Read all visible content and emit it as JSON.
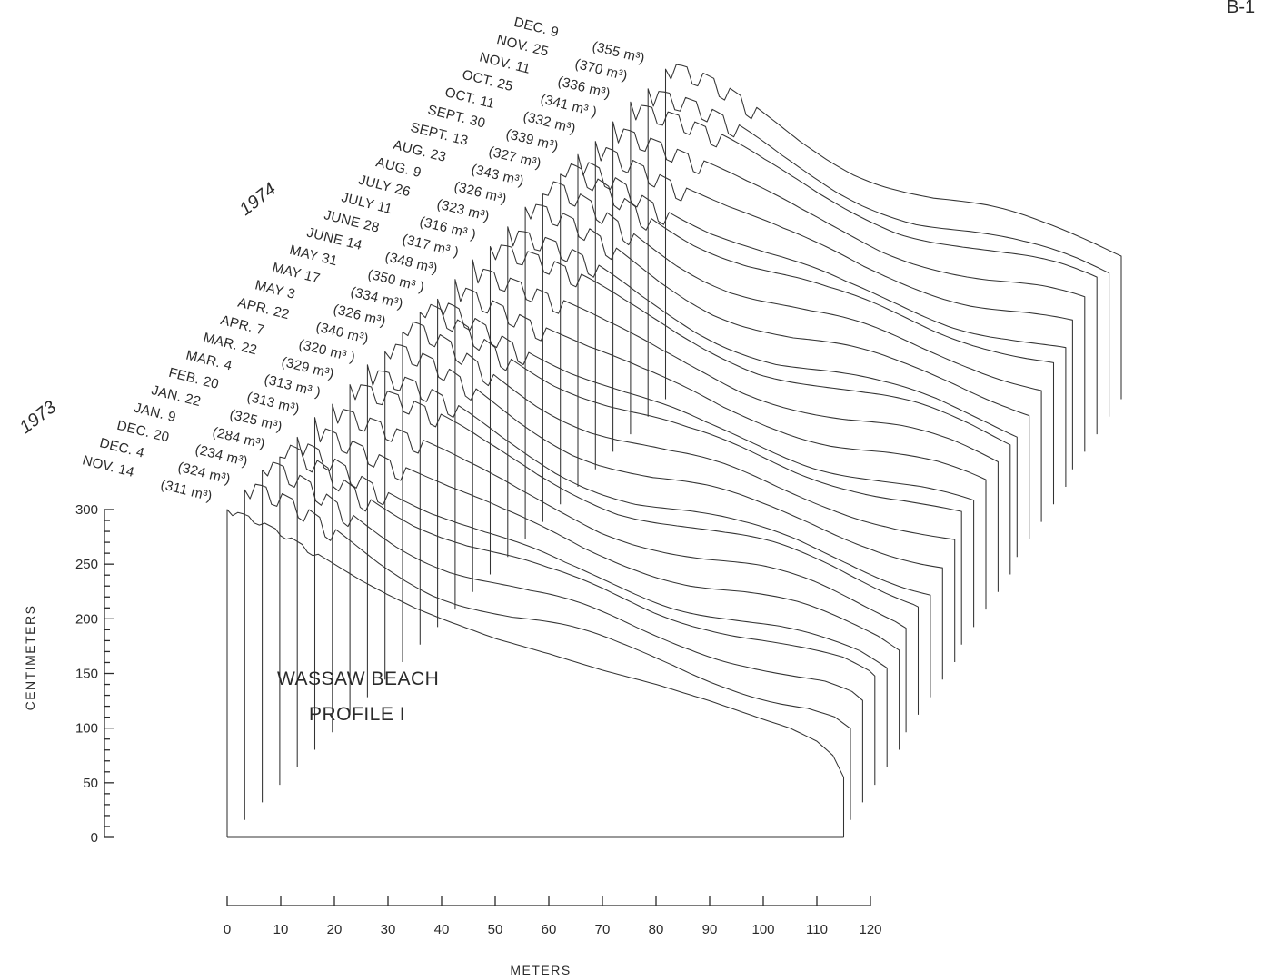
{
  "page_mark": "B-1",
  "chart_data": {
    "type": "line",
    "subtype": "stacked-profile-series",
    "title": "WASSAW BEACH",
    "subtitle": "PROFILE I",
    "xlabel": "METERS",
    "ylabel": "CENTIMETERS",
    "xlim": [
      0,
      120
    ],
    "ylim": [
      0,
      300
    ],
    "x_ticks": [
      "0",
      "10",
      "20",
      "30",
      "40",
      "50",
      "60",
      "70",
      "80",
      "90",
      "100",
      "110",
      "120"
    ],
    "y_ticks": [
      "0",
      "50",
      "100",
      "150",
      "200",
      "250",
      "300"
    ],
    "x_tick_values": [
      0,
      10,
      20,
      30,
      40,
      50,
      60,
      70,
      80,
      90,
      100,
      110,
      120
    ],
    "y_tick_values": [
      0,
      50,
      100,
      150,
      200,
      250,
      300
    ],
    "year_labels": [
      "1973",
      "1974"
    ],
    "grid": false,
    "legend": "none",
    "profile_length_m": 115,
    "series": [
      {
        "date": "NOV. 14",
        "volume": "(311 m³)"
      },
      {
        "date": "DEC. 4",
        "volume": "(324 m³)"
      },
      {
        "date": "DEC. 20",
        "volume": "(234 m³)"
      },
      {
        "date": "JAN. 9",
        "volume": "(284 m³)"
      },
      {
        "date": "JAN. 22",
        "volume": "(325 m³)"
      },
      {
        "date": "FEB. 20",
        "volume": "(313 m³)"
      },
      {
        "date": "MAR. 4",
        "volume": "(313 m³ )"
      },
      {
        "date": "MAR. 22",
        "volume": "(329 m³)"
      },
      {
        "date": "APR. 7",
        "volume": "(320 m³ )"
      },
      {
        "date": "APR. 22",
        "volume": "(340 m³)"
      },
      {
        "date": "MAY 3",
        "volume": "(326 m³)"
      },
      {
        "date": "MAY 17",
        "volume": "(334 m³)"
      },
      {
        "date": "MAY 31",
        "volume": "(350 m³ )"
      },
      {
        "date": "JUNE 14",
        "volume": "(348 m³)"
      },
      {
        "date": "JUNE 28",
        "volume": "(317 m³ )"
      },
      {
        "date": "JULY 11",
        "volume": "(316 m³ )"
      },
      {
        "date": "JULY 26",
        "volume": "(323 m³)"
      },
      {
        "date": "AUG. 9",
        "volume": "(326 m³)"
      },
      {
        "date": "AUG. 23",
        "volume": "(343 m³)"
      },
      {
        "date": "SEPT. 13",
        "volume": "(327 m³)"
      },
      {
        "date": "SEPT. 30",
        "volume": "(339 m³)"
      },
      {
        "date": "OCT. 11",
        "volume": "(332 m³)"
      },
      {
        "date": "OCT. 25",
        "volume": "(341 m³ )"
      },
      {
        "date": "NOV. 11",
        "volume": "(336 m³)"
      },
      {
        "date": "NOV. 25",
        "volume": "(370 m³)"
      },
      {
        "date": "DEC. 9",
        "volume": "(355 m³)"
      }
    ],
    "front_profile": {
      "date": "NOV. 14",
      "x": [
        0,
        3,
        6,
        10,
        15,
        20,
        25,
        30,
        35,
        40,
        50,
        60,
        70,
        80,
        90,
        100,
        105,
        110,
        113,
        115
      ],
      "y": [
        300,
        296,
        290,
        280,
        265,
        250,
        235,
        222,
        210,
        200,
        182,
        168,
        153,
        140,
        125,
        108,
        100,
        88,
        75,
        55
      ]
    }
  }
}
